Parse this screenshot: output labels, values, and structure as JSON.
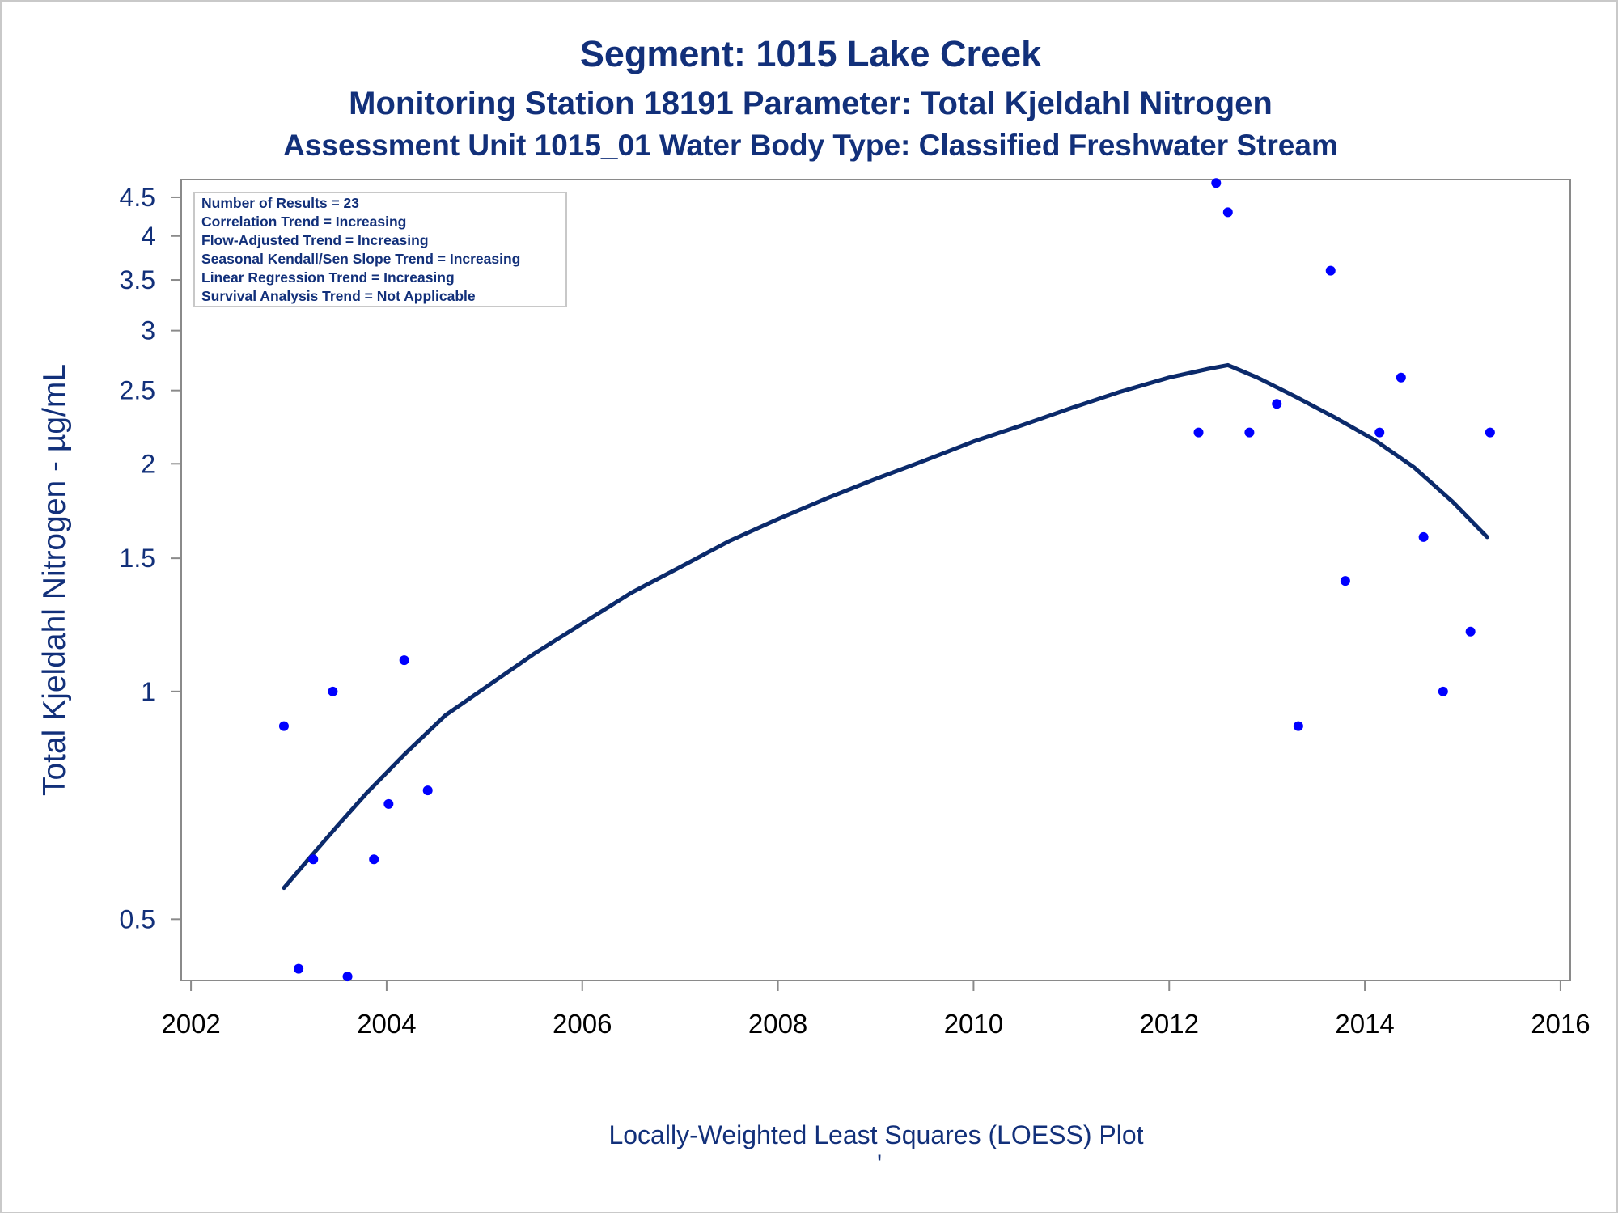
{
  "chart_data": {
    "type": "scatter",
    "title": "Segment: 1015  Lake Creek",
    "subtitle": "Monitoring Station 18191 Parameter: Total Kjeldahl Nitrogen",
    "subtitle2": "Assessment Unit 1015_01   Water Body Type: Classified Freshwater Stream",
    "xlabel": "",
    "ylabel": "Total Kjeldahl Nitrogen -  µg/mL",
    "footnote": "Locally-Weighted Least Squares (LOESS) Plot",
    "footnote_mark": "'",
    "xlim": [
      2001.9,
      2016.1
    ],
    "ylim": [
      0.415,
      4.75
    ],
    "yscale": "log",
    "grid": false,
    "x_ticks": [
      "2002",
      "2004",
      "2006",
      "2008",
      "2010",
      "2012",
      "2014",
      "2016"
    ],
    "y_ticks": [
      "0.5",
      "1",
      "1.5",
      "2",
      "2.5",
      "3",
      "3.5",
      "4",
      "4.5"
    ],
    "stats_box": {
      "placement": "top-left",
      "lines": [
        "Number of Results = 23",
        "Correlation Trend = Increasing",
        "Flow-Adjusted Trend = Increasing",
        "Seasonal Kendall/Sen Slope Trend = Increasing",
        "Linear Regression Trend = Increasing",
        "Survival Analysis Trend = Not Applicable"
      ]
    },
    "series": [
      {
        "kind": "points",
        "color": "#0000ff",
        "x": [
          2002.95,
          2003.1,
          2003.25,
          2003.45,
          2003.6,
          2003.87,
          2004.02,
          2004.18,
          2004.42,
          2012.3,
          2012.48,
          2012.6,
          2012.82,
          2013.1,
          2013.32,
          2013.65,
          2013.8,
          2014.15,
          2014.37,
          2014.6,
          2014.8,
          2015.08,
          2015.28
        ],
        "y": [
          0.9,
          0.43,
          0.6,
          1.0,
          0.42,
          0.6,
          0.71,
          1.1,
          0.74,
          2.2,
          4.7,
          4.3,
          2.2,
          2.4,
          0.9,
          3.6,
          1.4,
          2.2,
          2.6,
          1.6,
          1.0,
          1.2,
          2.2
        ]
      },
      {
        "kind": "line",
        "color": "#0b2a6b",
        "x": [
          2002.95,
          2003.2,
          2003.5,
          2003.8,
          2004.2,
          2004.6,
          2005.0,
          2005.5,
          2006.0,
          2006.5,
          2007.0,
          2007.5,
          2008.0,
          2008.5,
          2009.0,
          2009.5,
          2010.0,
          2010.5,
          2011.0,
          2011.5,
          2012.0,
          2012.4,
          2012.6,
          2012.9,
          2013.3,
          2013.7,
          2014.1,
          2014.5,
          2014.9,
          2015.25
        ],
        "y": [
          0.55,
          0.6,
          0.665,
          0.735,
          0.83,
          0.93,
          1.01,
          1.12,
          1.23,
          1.35,
          1.46,
          1.58,
          1.69,
          1.8,
          1.91,
          2.02,
          2.14,
          2.25,
          2.37,
          2.49,
          2.6,
          2.67,
          2.7,
          2.6,
          2.45,
          2.3,
          2.15,
          1.98,
          1.78,
          1.6
        ]
      }
    ]
  }
}
